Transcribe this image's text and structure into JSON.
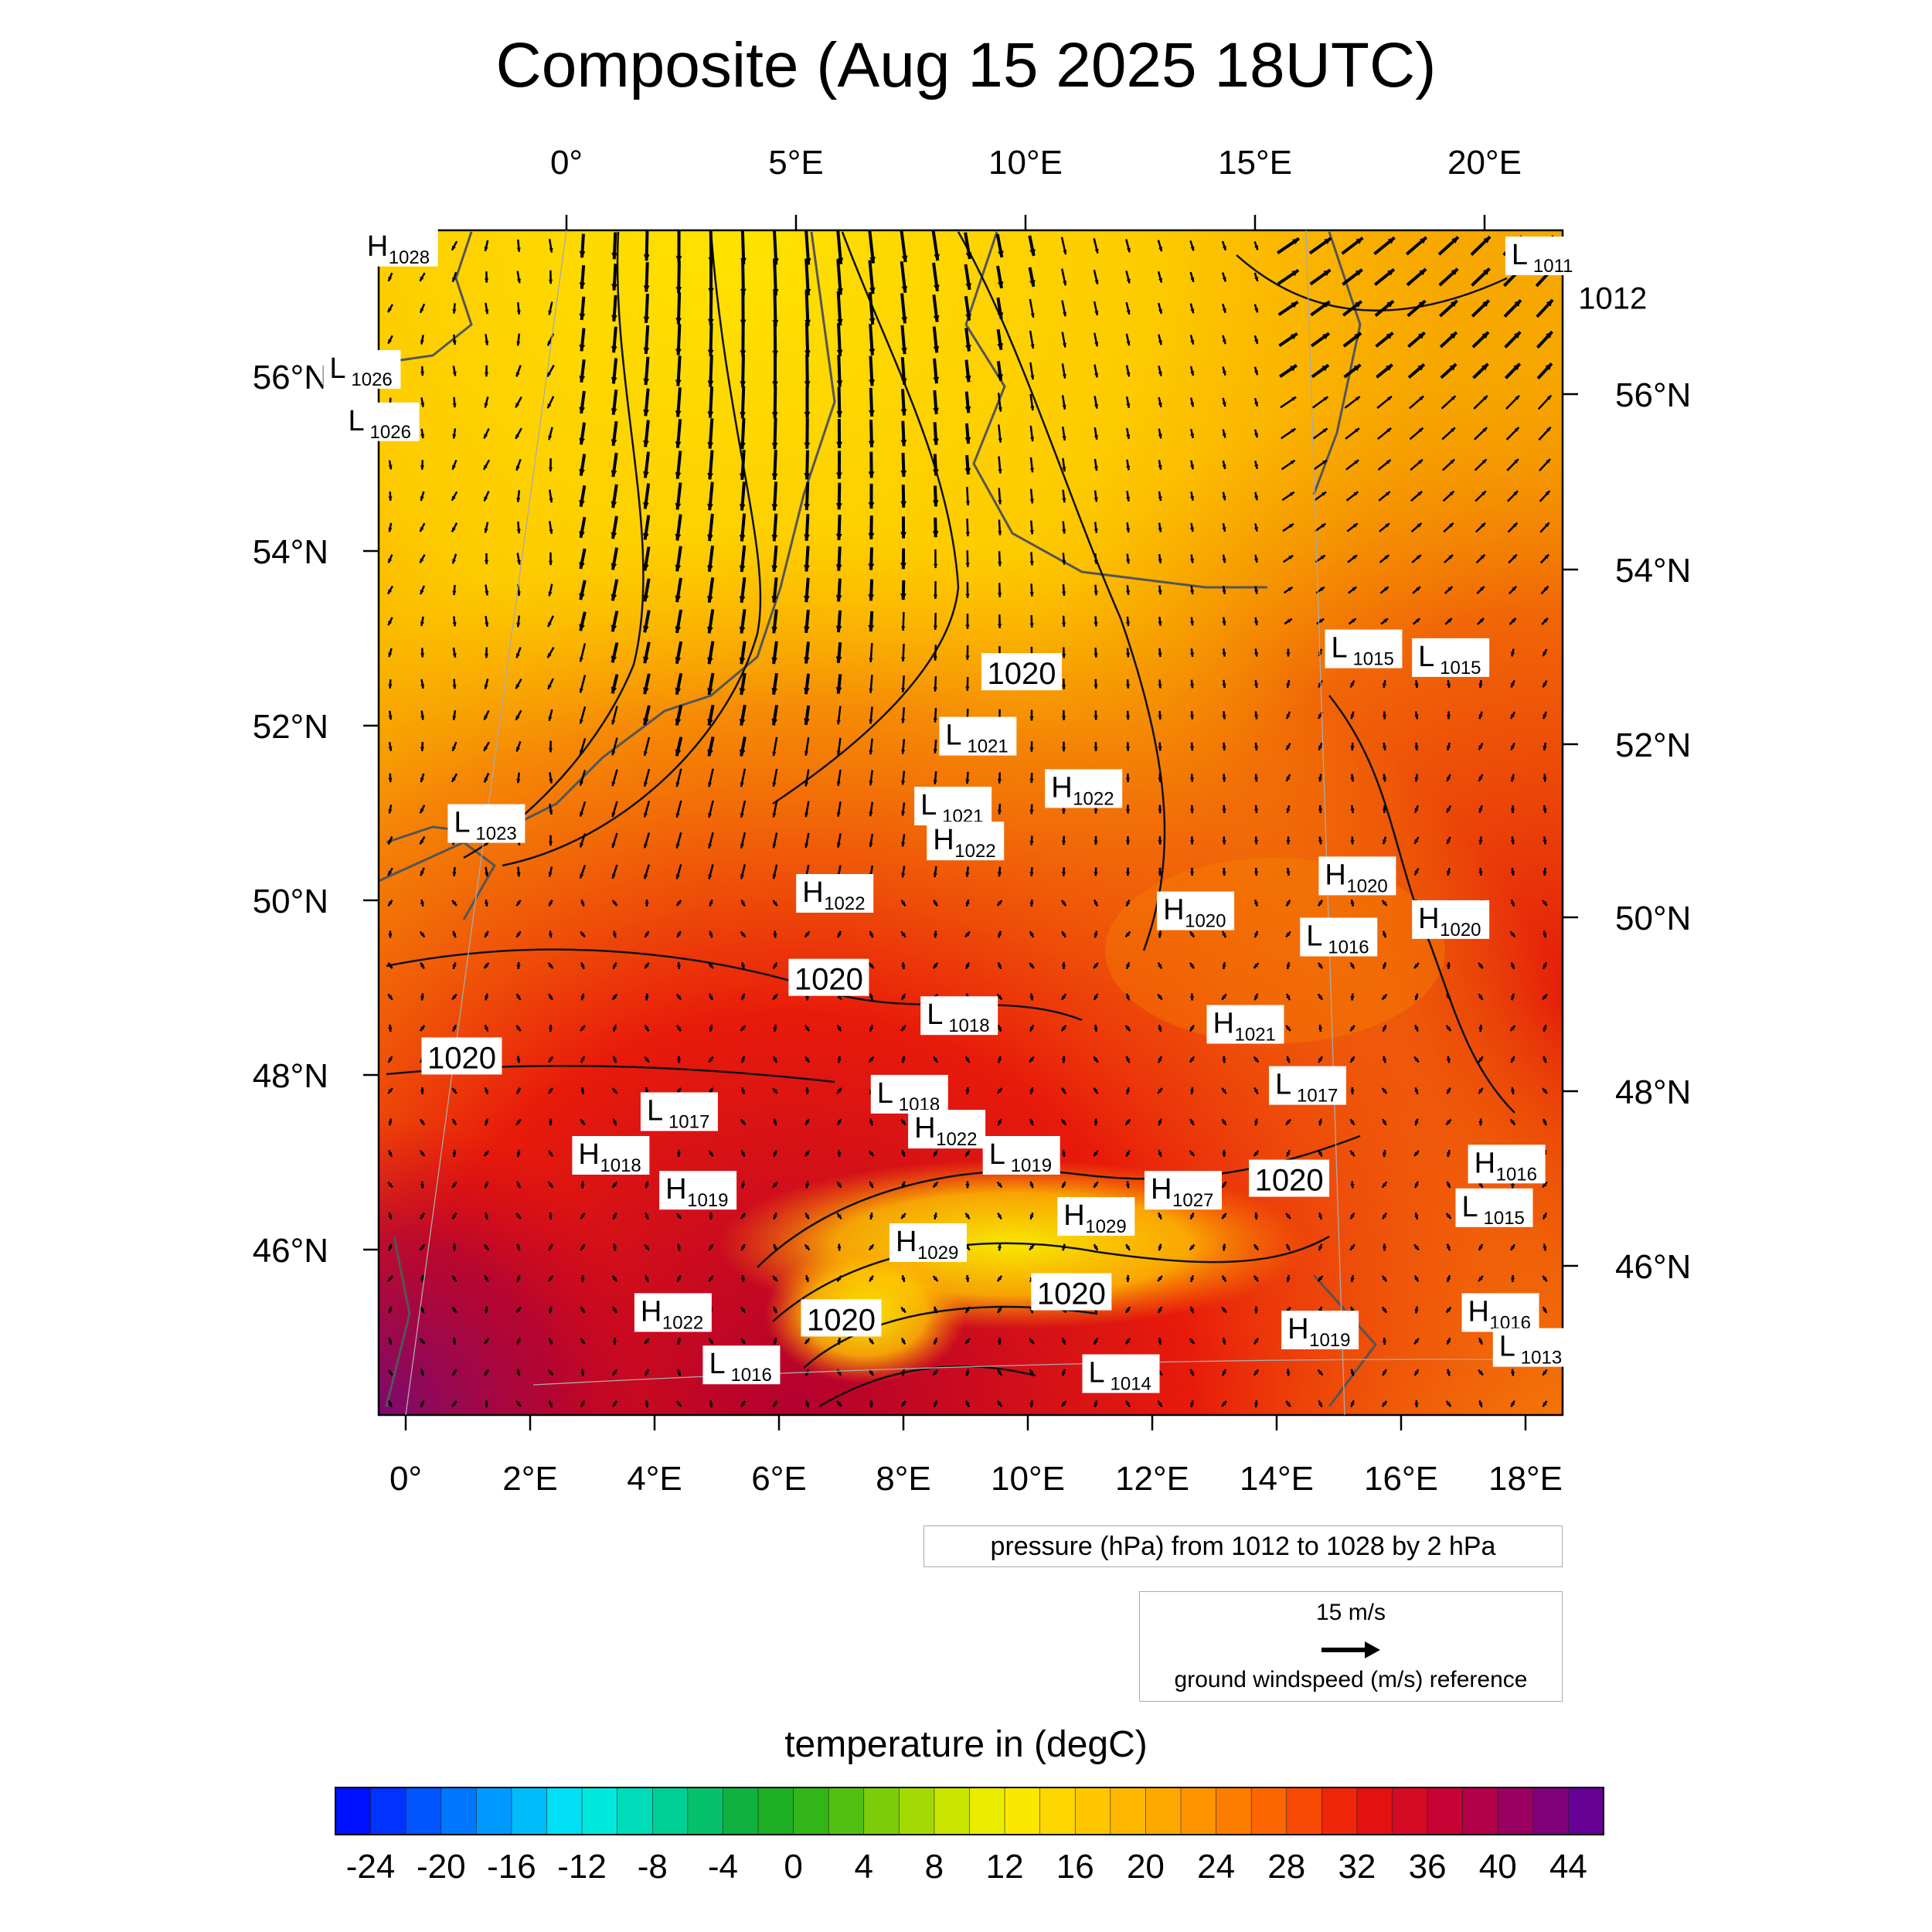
{
  "title": "Composite (Aug 15 2025 18UTC)",
  "top_lon_labels": [
    "0°",
    "5°E",
    "10°E",
    "15°E",
    "20°E"
  ],
  "bottom_lon_labels": [
    "0°",
    "2°E",
    "4°E",
    "6°E",
    "8°E",
    "10°E",
    "12°E",
    "14°E",
    "16°E",
    "18°E"
  ],
  "left_lat_labels": [
    "56°N",
    "54°N",
    "52°N",
    "50°N",
    "48°N",
    "46°N"
  ],
  "right_lat_labels": [
    "56°N",
    "54°N",
    "52°N",
    "50°N",
    "48°N",
    "46°N"
  ],
  "pressure_legend": "pressure (hPa) from 1012 to 1028 by 2 hPa",
  "wind_legend": {
    "value": "15 m/s",
    "label": "ground windspeed (m/s) reference"
  },
  "colorbar": {
    "title": "temperature in (degC)",
    "tick_labels": [
      "-24",
      "-20",
      "-16",
      "-12",
      "-8",
      "-4",
      "0",
      "4",
      "8",
      "12",
      "16",
      "20",
      "24",
      "28",
      "32",
      "36",
      "40",
      "44"
    ],
    "min": -26,
    "max": 46,
    "step": 2
  },
  "contour_labels": [
    {
      "text": "1012",
      "lon": 19.4,
      "lat": 56.9
    },
    {
      "text": "1020",
      "lon": 9.9,
      "lat": 52.6
    },
    {
      "text": "1020",
      "lon": 6.8,
      "lat": 49.1
    },
    {
      "text": "1020",
      "lon": 0.9,
      "lat": 48.2
    },
    {
      "text": "1020",
      "lon": 14.2,
      "lat": 46.8
    },
    {
      "text": "1020",
      "lon": 10.7,
      "lat": 45.5
    },
    {
      "text": "1020",
      "lon": 7.0,
      "lat": 45.2
    }
  ],
  "pressure_centers": [
    {
      "type": "H",
      "value": "1028",
      "lon": -0.6,
      "lat": 57.4
    },
    {
      "type": "L",
      "value": "1026",
      "lon": -1.2,
      "lat": 56.0
    },
    {
      "type": "L",
      "value": "1026",
      "lon": -0.9,
      "lat": 55.4
    },
    {
      "type": "L",
      "value": "1011",
      "lon": 17.8,
      "lat": 57.3
    },
    {
      "type": "L",
      "value": "1015",
      "lon": 14.9,
      "lat": 52.8
    },
    {
      "type": "L",
      "value": "1015",
      "lon": 16.3,
      "lat": 52.7
    },
    {
      "type": "L",
      "value": "1021",
      "lon": 8.7,
      "lat": 51.8
    },
    {
      "type": "H",
      "value": "1022",
      "lon": 10.4,
      "lat": 51.2
    },
    {
      "type": "L",
      "value": "1021",
      "lon": 8.3,
      "lat": 51.0
    },
    {
      "type": "H",
      "value": "1022",
      "lon": 8.5,
      "lat": 50.6
    },
    {
      "type": "L",
      "value": "1023",
      "lon": 0.8,
      "lat": 50.8
    },
    {
      "type": "H",
      "value": "1022",
      "lon": 6.4,
      "lat": 50.0
    },
    {
      "type": "H",
      "value": "1020",
      "lon": 14.8,
      "lat": 50.2
    },
    {
      "type": "H",
      "value": "1020",
      "lon": 12.2,
      "lat": 49.8
    },
    {
      "type": "H",
      "value": "1020",
      "lon": 16.3,
      "lat": 49.7
    },
    {
      "type": "L",
      "value": "1016",
      "lon": 14.5,
      "lat": 49.5
    },
    {
      "type": "L",
      "value": "1018",
      "lon": 8.4,
      "lat": 48.6
    },
    {
      "type": "H",
      "value": "1021",
      "lon": 13.0,
      "lat": 48.5
    },
    {
      "type": "L",
      "value": "1017",
      "lon": 14.0,
      "lat": 47.8
    },
    {
      "type": "L",
      "value": "1017",
      "lon": 3.9,
      "lat": 47.5
    },
    {
      "type": "L",
      "value": "1018",
      "lon": 7.6,
      "lat": 47.7
    },
    {
      "type": "H",
      "value": "1022",
      "lon": 8.2,
      "lat": 47.3
    },
    {
      "type": "H",
      "value": "1018",
      "lon": 2.8,
      "lat": 47.0
    },
    {
      "type": "L",
      "value": "1019",
      "lon": 9.4,
      "lat": 47.0
    },
    {
      "type": "H",
      "value": "1016",
      "lon": 17.2,
      "lat": 46.9
    },
    {
      "type": "H",
      "value": "1019",
      "lon": 4.2,
      "lat": 46.6
    },
    {
      "type": "H",
      "value": "1027",
      "lon": 12.0,
      "lat": 46.6
    },
    {
      "type": "L",
      "value": "1015",
      "lon": 17.0,
      "lat": 46.4
    },
    {
      "type": "H",
      "value": "1029",
      "lon": 10.6,
      "lat": 46.3
    },
    {
      "type": "H",
      "value": "1029",
      "lon": 7.9,
      "lat": 46.0
    },
    {
      "type": "H",
      "value": "1022",
      "lon": 3.8,
      "lat": 45.2
    },
    {
      "type": "H",
      "value": "1016",
      "lon": 17.1,
      "lat": 45.2
    },
    {
      "type": "H",
      "value": "1019",
      "lon": 14.2,
      "lat": 45.0
    },
    {
      "type": "L",
      "value": "1013",
      "lon": 17.6,
      "lat": 44.8
    },
    {
      "type": "L",
      "value": "1016",
      "lon": 4.9,
      "lat": 44.6
    },
    {
      "type": "L",
      "value": "1014",
      "lon": 11.0,
      "lat": 44.5
    }
  ]
}
